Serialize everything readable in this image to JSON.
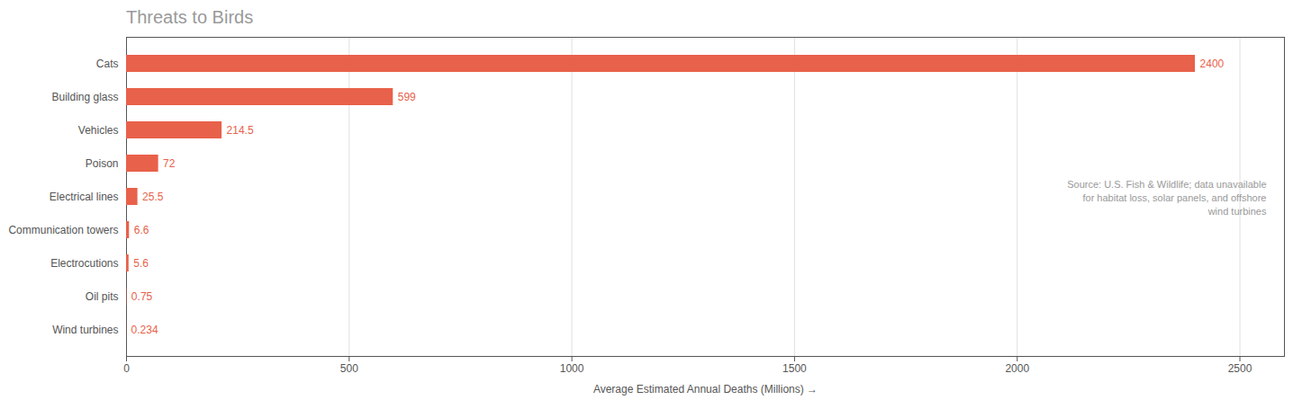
{
  "chart_data": {
    "type": "bar",
    "orientation": "horizontal",
    "title": "Threats to Birds",
    "xlabel": "Average Estimated Annual Deaths (Millions)",
    "categories": [
      "Cats",
      "Building glass",
      "Vehicles",
      "Poison",
      "Electrical lines",
      "Communication towers",
      "Electrocutions",
      "Oil pits",
      "Wind turbines"
    ],
    "values": [
      2400,
      599,
      214.5,
      72,
      25.5,
      6.6,
      5.6,
      0.75,
      0.234
    ],
    "color": "#e8614a",
    "xlim": [
      0,
      2600
    ],
    "xticks": [
      0,
      500,
      1000,
      1500,
      2000,
      2500
    ],
    "grid": true,
    "data_labels": true,
    "annotation": "Source: U.S. Fish & Wildlife; data unavailable\nfor habitat loss, solar panels, and offshore\nwind turbines"
  }
}
